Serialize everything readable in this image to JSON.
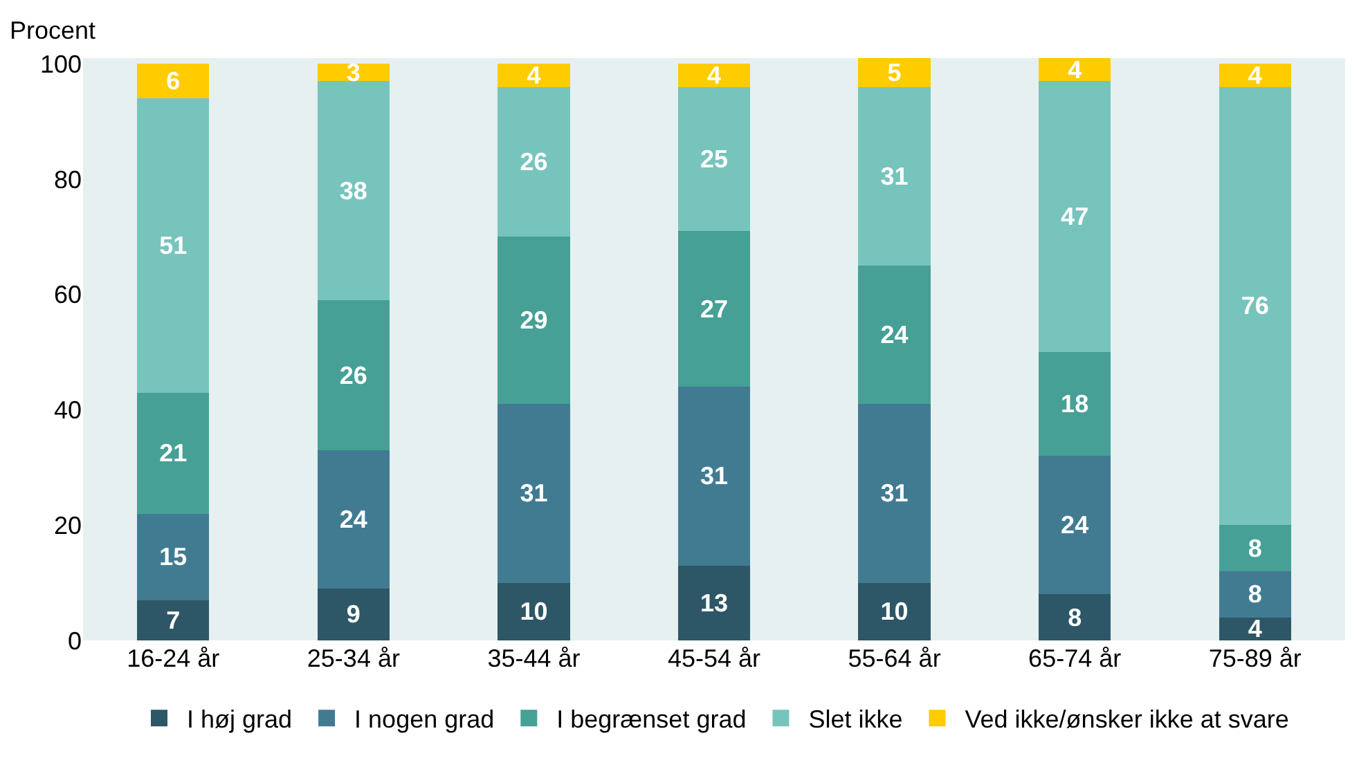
{
  "chart_data": {
    "type": "bar",
    "stacked": true,
    "ylabel": "Procent",
    "categories": [
      "16-24 år",
      "25-34 år",
      "35-44 år",
      "45-54 år",
      "55-64 år",
      "65-74 år",
      "75-89 år"
    ],
    "series": [
      {
        "name": "I høj grad",
        "color": "#2d5766",
        "values": [
          7,
          9,
          10,
          13,
          10,
          8,
          4
        ]
      },
      {
        "name": "I nogen grad",
        "color": "#417b92",
        "values": [
          15,
          24,
          31,
          31,
          31,
          24,
          8
        ]
      },
      {
        "name": "I begrænset grad",
        "color": "#46a096",
        "values": [
          21,
          26,
          29,
          27,
          24,
          18,
          8
        ]
      },
      {
        "name": "Slet ikke",
        "color": "#77c4bd",
        "values": [
          51,
          38,
          26,
          25,
          31,
          47,
          76
        ]
      },
      {
        "name": "Ved ikke/ønsker ikke at svare",
        "color": "#ffcc00",
        "values": [
          6,
          3,
          4,
          4,
          5,
          4,
          4
        ]
      }
    ],
    "ylim": [
      0,
      101
    ],
    "yticks": [
      0,
      20,
      40,
      60,
      80,
      100
    ],
    "data_labels": true,
    "grid": false,
    "legend": "bottom"
  }
}
